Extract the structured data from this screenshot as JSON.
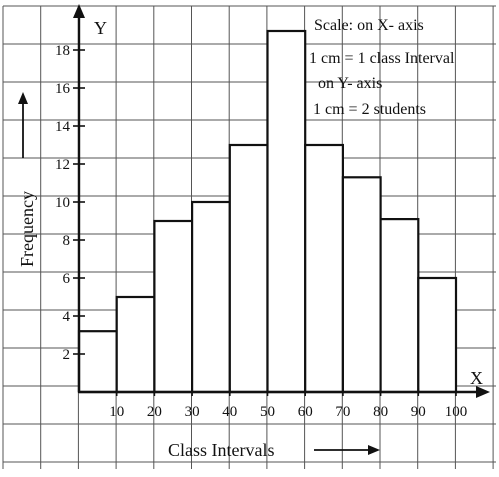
{
  "chart_data": {
    "type": "bar",
    "title": "",
    "categories": [
      "0-10",
      "10-20",
      "20-30",
      "30-40",
      "40-50",
      "50-60",
      "60-70",
      "70-80",
      "80-90",
      "90-100"
    ],
    "bins": [
      0,
      10,
      20,
      30,
      40,
      50,
      60,
      70,
      80,
      90,
      100
    ],
    "values": [
      3.2,
      5,
      9,
      10,
      13,
      19,
      13,
      11.3,
      9.1,
      6
    ],
    "x_tick_labels": [
      "10",
      "20",
      "30",
      "40",
      "50",
      "60",
      "70",
      "80",
      "90",
      "100"
    ],
    "y_tick_labels": [
      "2",
      "4",
      "6",
      "8",
      "10",
      "12",
      "14",
      "16",
      "18"
    ],
    "xlim": [
      0,
      100
    ],
    "ylim": [
      0,
      20
    ],
    "x_axis_letter": "X",
    "y_axis_letter": "Y",
    "xlabel": "Class Intervals",
    "ylabel": "Frequency",
    "scale_lines": [
      "Scale: on X- axis",
      "1 cm = 1 class Interval",
      "on Y- axis",
      "1 cm = 2 students"
    ],
    "grid": true,
    "colors": {
      "bar_fill": "#ffffff",
      "bar_stroke": "#111111",
      "grid": "#555555",
      "axis": "#111111"
    }
  }
}
